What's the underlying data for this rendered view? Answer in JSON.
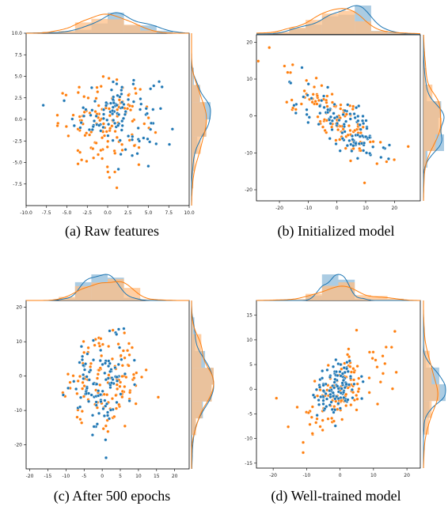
{
  "colors": {
    "blue": "#1f77b4",
    "orange": "#ff7f0e",
    "blue_fill": "#8fbbd9",
    "orange_fill": "#ffbf86"
  },
  "captions": [
    "(a) Raw features",
    "(b) Initialized model",
    "(c) After 500 epochs",
    "(d) Well-trained model"
  ],
  "chart_data": [
    {
      "type": "scatter",
      "title": "",
      "xlim": [
        -10,
        10
      ],
      "ylim": [
        -10,
        10
      ],
      "xticks": [
        -10.0,
        -7.5,
        -5.0,
        -2.5,
        0.0,
        2.5,
        5.0,
        7.5,
        10.0
      ],
      "yticks": [
        -7.5,
        -5.0,
        -2.5,
        0.0,
        2.5,
        5.0,
        7.5,
        10.0
      ],
      "tick_decimals": 1,
      "series": [
        {
          "color": "blue",
          "cluster": {
            "cx": 1.2,
            "cy": 0.8,
            "sx": 2.6,
            "sy": 2.3,
            "rho": 0.0,
            "n": 110
          }
        },
        {
          "color": "orange",
          "cluster": {
            "cx": -0.2,
            "cy": -0.6,
            "sx": 2.9,
            "sy": 2.4,
            "rho": 0.0,
            "n": 120
          }
        }
      ],
      "marginal_style": "histogram + kde"
    },
    {
      "type": "scatter",
      "title": "",
      "xlim": [
        -28,
        29
      ],
      "ylim": [
        -23,
        22
      ],
      "xticks": [
        -20,
        -10,
        0,
        10,
        20
      ],
      "yticks": [
        -20,
        -10,
        0,
        10,
        20
      ],
      "tick_decimals": 0,
      "series": [
        {
          "color": "blue",
          "cluster": {
            "cx": 3.0,
            "cy": -2.5,
            "sx": 8.0,
            "sy": 5.5,
            "rho": -0.8,
            "n": 110
          }
        },
        {
          "color": "orange",
          "cluster": {
            "cx": -1.0,
            "cy": 0.0,
            "sx": 8.5,
            "sy": 5.8,
            "rho": -0.8,
            "n": 120
          }
        }
      ],
      "marginal_style": "histogram + kde"
    },
    {
      "type": "scatter",
      "title": "",
      "xlim": [
        -21,
        24
      ],
      "ylim": [
        -27,
        22
      ],
      "xticks": [
        -20,
        -15,
        -10,
        -5,
        0,
        5,
        10,
        15,
        20
      ],
      "yticks": [
        -20,
        -10,
        0,
        10,
        20
      ],
      "tick_decimals": 0,
      "series": [
        {
          "color": "blue",
          "cluster": {
            "cx": 0.0,
            "cy": -2.0,
            "sx": 4.0,
            "sy": 7.0,
            "rho": 0.2,
            "n": 110
          }
        },
        {
          "color": "orange",
          "cluster": {
            "cx": 1.5,
            "cy": -1.0,
            "sx": 5.5,
            "sy": 7.0,
            "rho": 0.1,
            "n": 120
          }
        }
      ],
      "marginal_style": "histogram + kde"
    },
    {
      "type": "scatter",
      "title": "",
      "xlim": [
        -25,
        24
      ],
      "ylim": [
        -16,
        18
      ],
      "xticks": [
        -20,
        -10,
        0,
        10,
        20
      ],
      "yticks": [
        -15,
        -10,
        -5,
        0,
        5,
        10,
        15
      ],
      "tick_decimals": 0,
      "series": [
        {
          "color": "blue",
          "cluster": {
            "cx": -1.0,
            "cy": 0.0,
            "sx": 3.2,
            "sy": 3.0,
            "rho": 0.3,
            "n": 110
          }
        },
        {
          "color": "orange",
          "cluster": {
            "cx": 1.0,
            "cy": 0.5,
            "sx": 7.0,
            "sy": 5.0,
            "rho": 0.7,
            "n": 120
          }
        }
      ],
      "marginal_style": "histogram + kde"
    }
  ]
}
